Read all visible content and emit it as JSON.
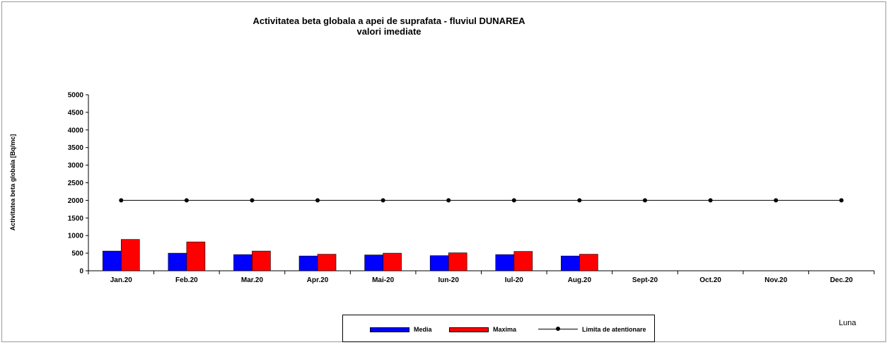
{
  "chart_data": {
    "type": "bar",
    "title": "Activitatea beta globala a apei de suprafata - fluviul DUNAREA",
    "subtitle": "valori imediate",
    "xlabel": "Luna",
    "ylabel": "Activitatea beta globala [Bq/mc]",
    "ylim": [
      0,
      5000
    ],
    "yticks": [
      "0",
      "500",
      "1000",
      "1500",
      "2000",
      "2500",
      "3000",
      "3500",
      "4000",
      "4500",
      "5000"
    ],
    "grid": false,
    "legend_position": "bottom",
    "categories": [
      "Jan.20",
      "Feb.20",
      "Mar.20",
      "Apr.20",
      "Mai-20",
      "Iun-20",
      "Iul-20",
      "Aug.20",
      "Sept-20",
      "Oct.20",
      "Nov.20",
      "Dec.20"
    ],
    "series": [
      {
        "name": "Media",
        "kind": "bar",
        "color": "#0000ff",
        "values": [
          560,
          500,
          460,
          420,
          450,
          430,
          460,
          420,
          null,
          null,
          null,
          null
        ]
      },
      {
        "name": "Maxima",
        "kind": "bar",
        "color": "#ff0000",
        "values": [
          890,
          820,
          560,
          470,
          500,
          510,
          550,
          470,
          null,
          null,
          null,
          null
        ]
      },
      {
        "name": "Limita de atentionare",
        "kind": "line",
        "color": "#000000",
        "values": [
          2000,
          2000,
          2000,
          2000,
          2000,
          2000,
          2000,
          2000,
          2000,
          2000,
          2000,
          2000
        ]
      }
    ]
  }
}
